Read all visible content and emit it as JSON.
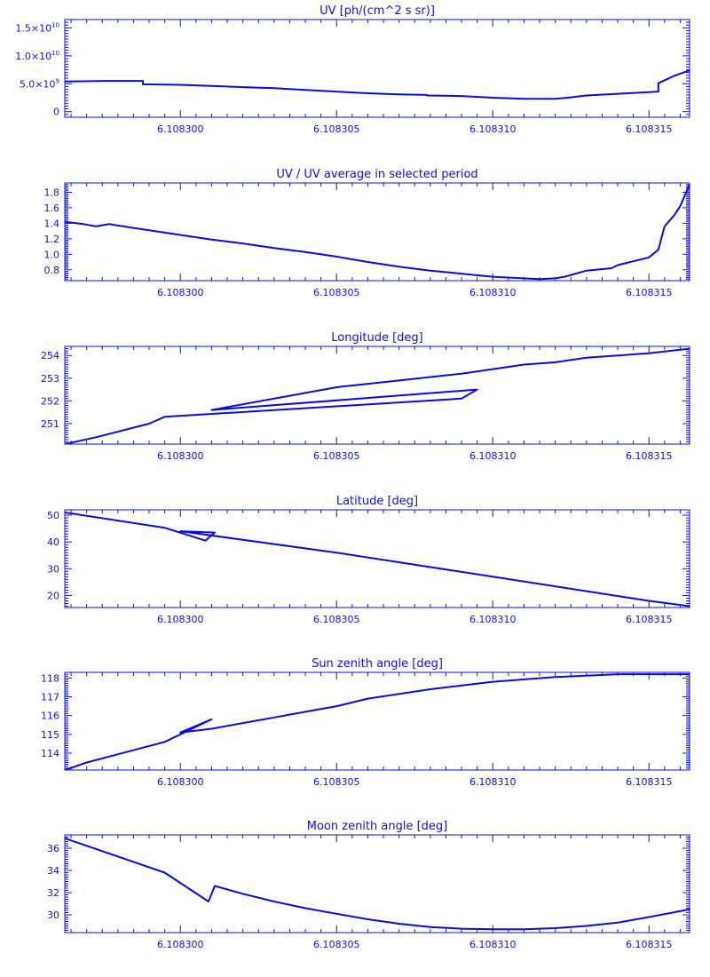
{
  "chart_data": [
    {
      "type": "line",
      "title": "UV [ph/(cm^2 s sr)]",
      "xlim": [
        6.1082963,
        6.1083163
      ],
      "x_ticks": [
        {
          "value": 6.1083,
          "label": "6.108300"
        },
        {
          "value": 6.108305,
          "label": "6.108305"
        },
        {
          "value": 6.10831,
          "label": "6.108310"
        },
        {
          "value": 6.108315,
          "label": "6.108315"
        }
      ],
      "ylim": [
        -1000000000.0,
        16500000000.0
      ],
      "y_ticks": [
        {
          "value": 0,
          "label": "0",
          "mant": "0",
          "exp": ""
        },
        {
          "value": 5000000000.0,
          "label": "5.0×10⁹",
          "mant": "5.0×10",
          "exp": "9"
        },
        {
          "value": 10000000000.0,
          "label": "1.0×10¹⁰",
          "mant": "1.0×10",
          "exp": "10"
        },
        {
          "value": 15000000000.0,
          "label": "1.5×10¹⁰",
          "mant": "1.5×10",
          "exp": "10"
        }
      ],
      "series": [
        {
          "x": [
            6.1082963,
            6.1082976,
            6.1082988,
            6.1082988,
            6.1083,
            6.108301,
            6.108302,
            6.108303,
            6.108304,
            6.108305,
            6.108306,
            6.108307,
            6.1083079,
            6.1083079,
            6.108309,
            6.10831,
            6.108311,
            6.108312,
            6.1083124,
            6.108313,
            6.108314,
            6.108315,
            6.1083153,
            6.1083153,
            6.1083158,
            6.1083163
          ],
          "y": [
            5400000000.0,
            5500000000.0,
            5500000000.0,
            4900000000.0,
            4800000000.0,
            4600000000.0,
            4400000000.0,
            4200000000.0,
            3900000000.0,
            3600000000.0,
            3300000000.0,
            3100000000.0,
            3000000000.0,
            2900000000.0,
            2800000000.0,
            2500000000.0,
            2300000000.0,
            2300000000.0,
            2500000000.0,
            2900000000.0,
            3200000000.0,
            3500000000.0,
            3600000000.0,
            5100000000.0,
            6400000000.0,
            7400000000.0
          ]
        }
      ]
    },
    {
      "type": "line",
      "title": "UV / UV average in selected period",
      "xlim": [
        6.1082963,
        6.1083163
      ],
      "x_ticks": [
        {
          "value": 6.1083,
          "label": "6.108300"
        },
        {
          "value": 6.108305,
          "label": "6.108305"
        },
        {
          "value": 6.10831,
          "label": "6.108310"
        },
        {
          "value": 6.108315,
          "label": "6.108315"
        }
      ],
      "ylim": [
        0.66,
        1.92
      ],
      "y_ticks": [
        {
          "value": 0.8,
          "label": "0.8"
        },
        {
          "value": 1.0,
          "label": "1.0"
        },
        {
          "value": 1.2,
          "label": "1.2"
        },
        {
          "value": 1.4,
          "label": "1.4"
        },
        {
          "value": 1.6,
          "label": "1.6"
        },
        {
          "value": 1.8,
          "label": "1.8"
        }
      ],
      "series": [
        {
          "x": [
            6.1082963,
            6.1082969,
            6.1082973,
            6.1082977,
            6.1082985,
            6.108299,
            6.1083,
            6.108301,
            6.108302,
            6.108303,
            6.108304,
            6.108305,
            6.108306,
            6.108307,
            6.108308,
            6.108309,
            6.10831,
            6.108311,
            6.1083115,
            6.108312,
            6.1083123,
            6.108313,
            6.1083138,
            6.108314,
            6.108315,
            6.1083153,
            6.1083155,
            6.1083158,
            6.108316,
            6.1083163
          ],
          "y": [
            1.42,
            1.39,
            1.36,
            1.39,
            1.34,
            1.31,
            1.25,
            1.19,
            1.14,
            1.08,
            1.03,
            0.97,
            0.9,
            0.84,
            0.79,
            0.75,
            0.71,
            0.69,
            0.68,
            0.69,
            0.71,
            0.79,
            0.82,
            0.86,
            0.96,
            1.06,
            1.36,
            1.5,
            1.62,
            1.9
          ]
        }
      ]
    },
    {
      "type": "line",
      "title": "Longitude [deg]",
      "xlim": [
        6.1082963,
        6.1083163
      ],
      "x_ticks": [
        {
          "value": 6.1083,
          "label": "6.108300"
        },
        {
          "value": 6.108305,
          "label": "6.108305"
        },
        {
          "value": 6.10831,
          "label": "6.108310"
        },
        {
          "value": 6.108315,
          "label": "6.108315"
        }
      ],
      "ylim": [
        250.1,
        254.4
      ],
      "y_ticks": [
        {
          "value": 251,
          "label": "251"
        },
        {
          "value": 252,
          "label": "252"
        },
        {
          "value": 253,
          "label": "253"
        },
        {
          "value": 254,
          "label": "254"
        }
      ],
      "series": [
        {
          "x": [
            6.1082963,
            6.1082973,
            6.108299,
            6.1082995,
            6.108309,
            6.1083095,
            6.108301,
            6.108305,
            6.108307,
            6.108309,
            6.10831,
            6.108311,
            6.108312,
            6.108313,
            6.108314,
            6.108315,
            6.1083163
          ],
          "y": [
            250.1,
            250.4,
            251.0,
            251.3,
            252.1,
            252.5,
            251.6,
            252.6,
            252.9,
            253.2,
            253.4,
            253.6,
            253.7,
            253.9,
            254.0,
            254.1,
            254.3
          ]
        }
      ]
    },
    {
      "type": "line",
      "title": "Latitude [deg]",
      "xlim": [
        6.1082963,
        6.1083163
      ],
      "x_ticks": [
        {
          "value": 6.1083,
          "label": "6.108300"
        },
        {
          "value": 6.108305,
          "label": "6.108305"
        },
        {
          "value": 6.10831,
          "label": "6.108310"
        },
        {
          "value": 6.108315,
          "label": "6.108315"
        }
      ],
      "ylim": [
        15.5,
        52
      ],
      "y_ticks": [
        {
          "value": 20,
          "label": "20"
        },
        {
          "value": 30,
          "label": "30"
        },
        {
          "value": 40,
          "label": "40"
        },
        {
          "value": 50,
          "label": "50"
        }
      ],
      "series": [
        {
          "x": [
            6.1082963,
            6.1082995,
            6.1083008,
            6.1083011,
            6.1083,
            6.108305,
            6.10831,
            6.108315,
            6.1083163
          ],
          "y": [
            51.0,
            45.3,
            40.5,
            43.5,
            44.0,
            36.0,
            27.0,
            18.0,
            16.0
          ]
        }
      ]
    },
    {
      "type": "line",
      "title": "Sun zenith angle [deg]",
      "xlim": [
        6.1082963,
        6.1083163
      ],
      "x_ticks": [
        {
          "value": 6.1083,
          "label": "6.108300"
        },
        {
          "value": 6.108305,
          "label": "6.108305"
        },
        {
          "value": 6.10831,
          "label": "6.108310"
        },
        {
          "value": 6.108315,
          "label": "6.108315"
        }
      ],
      "ylim": [
        113.1,
        118.3
      ],
      "y_ticks": [
        {
          "value": 114,
          "label": "114"
        },
        {
          "value": 115,
          "label": "115"
        },
        {
          "value": 116,
          "label": "116"
        },
        {
          "value": 117,
          "label": "117"
        },
        {
          "value": 118,
          "label": "118"
        }
      ],
      "series": [
        {
          "x": [
            6.1082963,
            6.108297,
            6.1082995,
            6.108301,
            6.1083,
            6.108301,
            6.108302,
            6.108303,
            6.108304,
            6.108305,
            6.108306,
            6.108308,
            6.10831,
            6.108312,
            6.108314,
            6.1083163
          ],
          "y": [
            113.1,
            113.5,
            114.6,
            115.8,
            115.1,
            115.3,
            115.6,
            115.9,
            116.2,
            116.5,
            116.9,
            117.4,
            117.8,
            118.05,
            118.2,
            118.2
          ]
        }
      ]
    },
    {
      "type": "line",
      "title": "Moon zenith angle [deg]",
      "xlim": [
        6.1082963,
        6.1083163
      ],
      "x_ticks": [
        {
          "value": 6.1083,
          "label": "6.108300"
        },
        {
          "value": 6.108305,
          "label": "6.108305"
        },
        {
          "value": 6.10831,
          "label": "6.108310"
        },
        {
          "value": 6.108315,
          "label": "6.108315"
        }
      ],
      "ylim": [
        28.4,
        37.2
      ],
      "y_ticks": [
        {
          "value": 30,
          "label": "30"
        },
        {
          "value": 32,
          "label": "32"
        },
        {
          "value": 34,
          "label": "34"
        },
        {
          "value": 36,
          "label": "36"
        }
      ],
      "series": [
        {
          "x": [
            6.1082963,
            6.1082995,
            6.1083009,
            6.1083011,
            6.108302,
            6.108303,
            6.108304,
            6.108305,
            6.108306,
            6.108307,
            6.108308,
            6.108309,
            6.10831,
            6.108311,
            6.108312,
            6.108313,
            6.108314,
            6.108315,
            6.1083163
          ],
          "y": [
            36.9,
            33.8,
            31.2,
            32.6,
            31.9,
            31.2,
            30.6,
            30.1,
            29.6,
            29.2,
            28.9,
            28.75,
            28.7,
            28.7,
            28.8,
            29.0,
            29.3,
            29.8,
            30.5
          ]
        }
      ]
    }
  ]
}
